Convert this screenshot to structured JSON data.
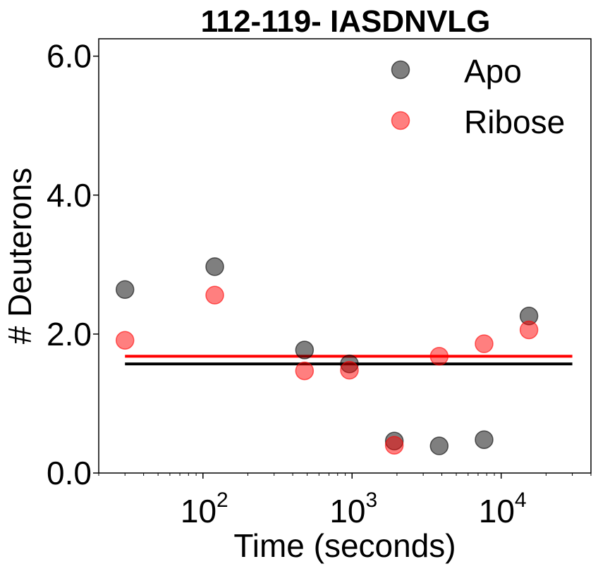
{
  "chart_data": {
    "type": "scatter",
    "title": "112-119- IASDNVLG",
    "xlabel": "Time (seconds)",
    "ylabel": "# Deuterons",
    "xscale": "log",
    "xlim": [
      20,
      40000
    ],
    "ylim": [
      0,
      6.25
    ],
    "xticks": [
      {
        "value": 100,
        "base": "10",
        "exp": "2"
      },
      {
        "value": 1000,
        "base": "10",
        "exp": "3"
      },
      {
        "value": 10000,
        "base": "10",
        "exp": "4"
      }
    ],
    "yticks": [
      {
        "value": 0,
        "label": "0.0"
      },
      {
        "value": 2,
        "label": "2.0"
      },
      {
        "value": 4,
        "label": "4.0"
      },
      {
        "value": 6,
        "label": "6.0"
      }
    ],
    "legend_position": "top-right",
    "grid": false,
    "series": [
      {
        "name": "Apo",
        "color": "#000000",
        "opacity": 0.5,
        "points": [
          {
            "x": 30,
            "y": 2.64
          },
          {
            "x": 120,
            "y": 2.97
          },
          {
            "x": 480,
            "y": 1.77
          },
          {
            "x": 960,
            "y": 1.57
          },
          {
            "x": 1920,
            "y": 0.46
          },
          {
            "x": 3840,
            "y": 0.39
          },
          {
            "x": 7680,
            "y": 0.48
          },
          {
            "x": 15360,
            "y": 2.26
          }
        ],
        "mean": 1.57
      },
      {
        "name": "Ribose",
        "color": "#ff0000",
        "opacity": 0.5,
        "points": [
          {
            "x": 30,
            "y": 1.91
          },
          {
            "x": 120,
            "y": 2.56
          },
          {
            "x": 480,
            "y": 1.47
          },
          {
            "x": 960,
            "y": 1.48
          },
          {
            "x": 1920,
            "y": 0.4
          },
          {
            "x": 3840,
            "y": 1.68
          },
          {
            "x": 7680,
            "y": 1.86
          },
          {
            "x": 15360,
            "y": 2.06
          }
        ],
        "mean": 1.68
      }
    ],
    "mean_line_range": [
      30,
      30000
    ]
  }
}
